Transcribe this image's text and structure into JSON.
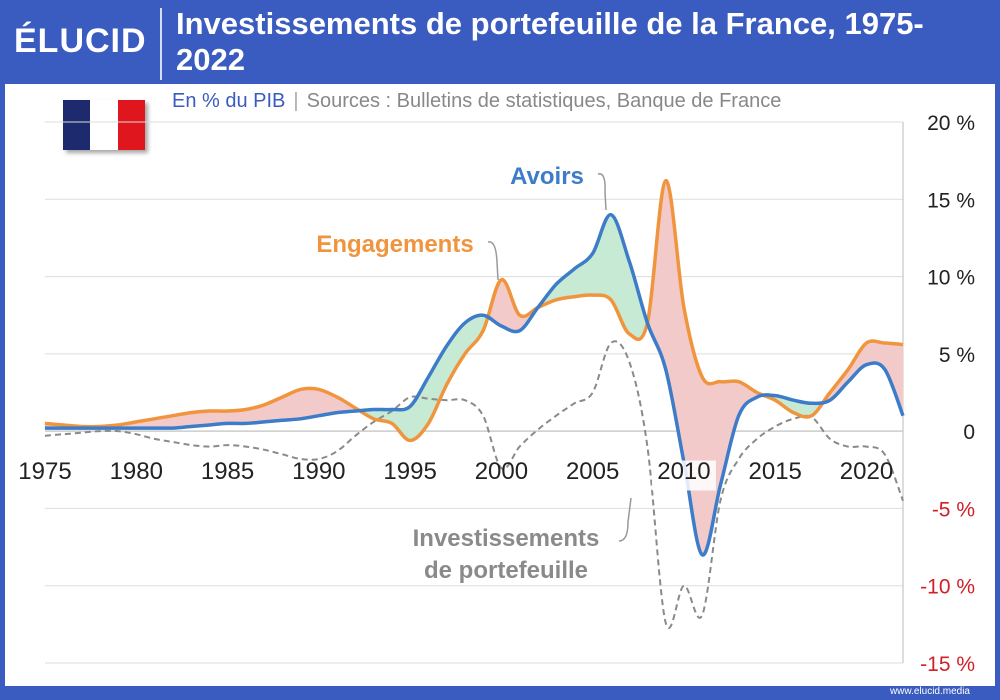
{
  "brand": {
    "logo": "ÉLUCID",
    "footer": "www.elucid.media"
  },
  "header": {
    "title": "Investissements de portefeuille de la France, 1975-2022",
    "subtitle_unit": "En % du PIB",
    "subtitle_separator": "|",
    "subtitle_source": "Sources : Bulletins de statistiques, Banque de France"
  },
  "flag_colors": [
    "#1d2a6e",
    "#ffffff",
    "#e0161f"
  ],
  "chart_data": {
    "type": "line",
    "title": "Investissements de portefeuille de la France, 1975-2022",
    "x_ticks": [
      1975,
      1980,
      1985,
      1990,
      1995,
      2000,
      2005,
      2010,
      2015,
      2020
    ],
    "xlim": [
      1975,
      2022
    ],
    "ylim": [
      -15,
      20
    ],
    "y_ticks": [
      {
        "value": 20,
        "label": "20 %"
      },
      {
        "value": 15,
        "label": "15 %"
      },
      {
        "value": 10,
        "label": "10 %"
      },
      {
        "value": 5,
        "label": "5 %"
      },
      {
        "value": 0,
        "label": "0"
      },
      {
        "value": -5,
        "label": "-5 %"
      },
      {
        "value": -10,
        "label": "-10 %"
      },
      {
        "value": -15,
        "label": "-15 %"
      }
    ],
    "colors": {
      "avoirs": "#3d7cc9",
      "engagements": "#f0953e",
      "net": "#8a8a8a",
      "fill_avoirs_higher": "#c7ead4",
      "fill_engagements_higher": "#f3caca",
      "negative_tick": "#d0202a",
      "grid": "#dddddd"
    },
    "series": [
      {
        "name": "Avoirs",
        "x": [
          1975,
          1976,
          1977,
          1978,
          1979,
          1980,
          1981,
          1982,
          1983,
          1984,
          1985,
          1986,
          1987,
          1988,
          1989,
          1990,
          1991,
          1992,
          1993,
          1994,
          1995,
          1996,
          1997,
          1998,
          1999,
          2000,
          2001,
          2002,
          2003,
          2004,
          2005,
          2006,
          2007,
          2008,
          2009,
          2010,
          2011,
          2012,
          2013,
          2014,
          2015,
          2016,
          2017,
          2018,
          2019,
          2020,
          2021,
          2022
        ],
        "values": [
          0.2,
          0.2,
          0.2,
          0.2,
          0.2,
          0.2,
          0.2,
          0.2,
          0.3,
          0.4,
          0.5,
          0.5,
          0.6,
          0.7,
          0.8,
          1.0,
          1.2,
          1.3,
          1.4,
          1.4,
          1.6,
          3.5,
          5.5,
          7.0,
          7.5,
          6.8,
          6.5,
          8.0,
          9.5,
          10.5,
          11.5,
          14.0,
          11.0,
          7.0,
          4.0,
          -2.0,
          -8.0,
          -3.5,
          1.0,
          2.2,
          2.3,
          2.0,
          1.8,
          2.0,
          3.2,
          4.3,
          4.0,
          1.0
        ]
      },
      {
        "name": "Engagements",
        "x": [
          1975,
          1976,
          1977,
          1978,
          1979,
          1980,
          1981,
          1982,
          1983,
          1984,
          1985,
          1986,
          1987,
          1988,
          1989,
          1990,
          1991,
          1992,
          1993,
          1994,
          1995,
          1996,
          1997,
          1998,
          1999,
          2000,
          2001,
          2002,
          2003,
          2004,
          2005,
          2006,
          2007,
          2008,
          2009,
          2010,
          2011,
          2012,
          2013,
          2014,
          2015,
          2016,
          2017,
          2018,
          2019,
          2020,
          2021,
          2022
        ],
        "values": [
          0.5,
          0.4,
          0.3,
          0.3,
          0.4,
          0.6,
          0.8,
          1.0,
          1.2,
          1.3,
          1.3,
          1.4,
          1.7,
          2.2,
          2.7,
          2.7,
          2.2,
          1.5,
          0.8,
          0.5,
          -0.6,
          0.5,
          3.0,
          5.0,
          6.5,
          9.8,
          7.5,
          8.0,
          8.5,
          8.7,
          8.8,
          8.5,
          6.3,
          7.0,
          16.2,
          8.0,
          3.5,
          3.2,
          3.2,
          2.5,
          2.0,
          1.2,
          1.0,
          2.5,
          4.0,
          5.7,
          5.7,
          5.6
        ]
      },
      {
        "name": "Investissements de portefeuille",
        "x": [
          1975,
          1976,
          1977,
          1978,
          1979,
          1980,
          1981,
          1982,
          1983,
          1984,
          1985,
          1986,
          1987,
          1988,
          1989,
          1990,
          1991,
          1992,
          1993,
          1994,
          1995,
          1996,
          1997,
          1998,
          1999,
          2000,
          2001,
          2002,
          2003,
          2004,
          2005,
          2006,
          2007,
          2008,
          2009,
          2010,
          2011,
          2012,
          2013,
          2014,
          2015,
          2016,
          2017,
          2018,
          2019,
          2020,
          2021,
          2022
        ],
        "values": [
          -0.3,
          -0.2,
          -0.1,
          0.0,
          0.0,
          -0.2,
          -0.5,
          -0.7,
          -0.9,
          -1.0,
          -0.9,
          -1.0,
          -1.2,
          -1.5,
          -1.8,
          -1.8,
          -1.3,
          -0.3,
          0.6,
          1.3,
          2.2,
          2.1,
          2.0,
          2.0,
          1.0,
          -2.4,
          -1.0,
          0.1,
          1.0,
          1.8,
          2.5,
          5.7,
          4.5,
          -1.0,
          -12.4,
          -10.0,
          -11.9,
          -4.5,
          -1.8,
          -0.5,
          0.3,
          0.8,
          0.9,
          -0.5,
          -1.0,
          -1.0,
          -1.5,
          -4.5
        ]
      }
    ],
    "annotations": [
      {
        "text": "Avoirs",
        "color": "#3d7cc9"
      },
      {
        "text": "Engagements",
        "color": "#f0953e"
      },
      {
        "text": "Investissements de portefeuille",
        "color": "#8a8a8a"
      }
    ]
  }
}
